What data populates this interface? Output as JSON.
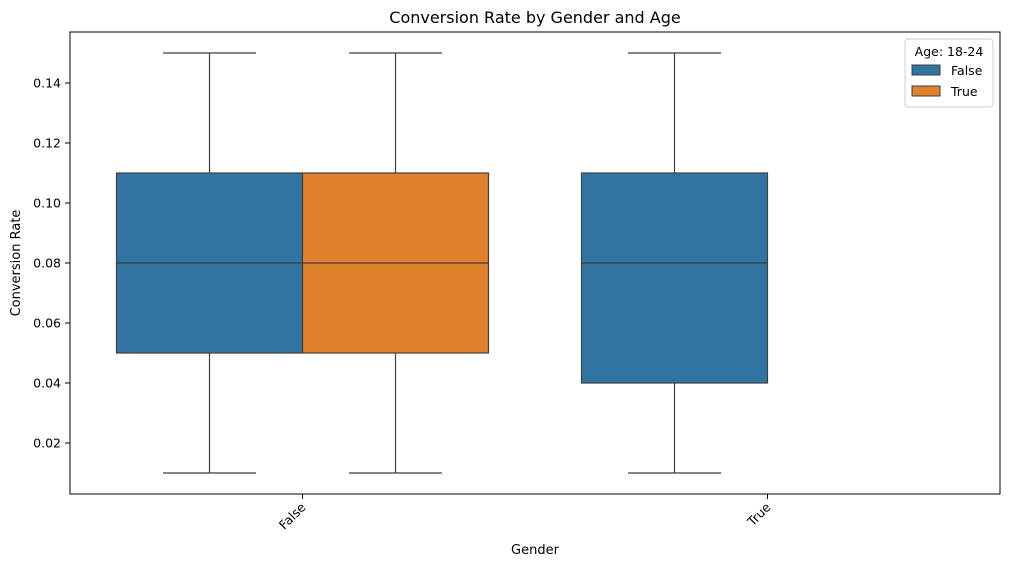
{
  "chart_data": {
    "type": "box",
    "title": "Conversion Rate by Gender and Age",
    "xlabel": "Gender",
    "ylabel": "Conversion Rate",
    "categories": [
      "False",
      "True"
    ],
    "ylim": [
      0.003,
      0.157
    ],
    "yticks": [
      0.02,
      0.04,
      0.06,
      0.08,
      0.1,
      0.12,
      0.14
    ],
    "ytick_labels": [
      "0.02",
      "0.04",
      "0.06",
      "0.08",
      "0.10",
      "0.12",
      "0.14"
    ],
    "xtick_rotation_deg": 45,
    "grid": false,
    "legend": {
      "title": "Age: 18-24",
      "placement": "top-right",
      "entries": [
        {
          "label": "False",
          "color": "#3274a1"
        },
        {
          "label": "True",
          "color": "#e1812c"
        }
      ]
    },
    "series": [
      {
        "name": "False",
        "color": "#3274a1",
        "boxes": [
          {
            "category": "False",
            "whisker_low": 0.01,
            "q1": 0.05,
            "median": 0.08,
            "q3": 0.11,
            "whisker_high": 0.15
          },
          {
            "category": "True",
            "whisker_low": 0.01,
            "q1": 0.04,
            "median": 0.08,
            "q3": 0.11,
            "whisker_high": 0.15
          }
        ]
      },
      {
        "name": "True",
        "color": "#e1812c",
        "boxes": [
          {
            "category": "False",
            "whisker_low": 0.01,
            "q1": 0.05,
            "median": 0.08,
            "q3": 0.11,
            "whisker_high": 0.15
          }
        ]
      }
    ]
  }
}
